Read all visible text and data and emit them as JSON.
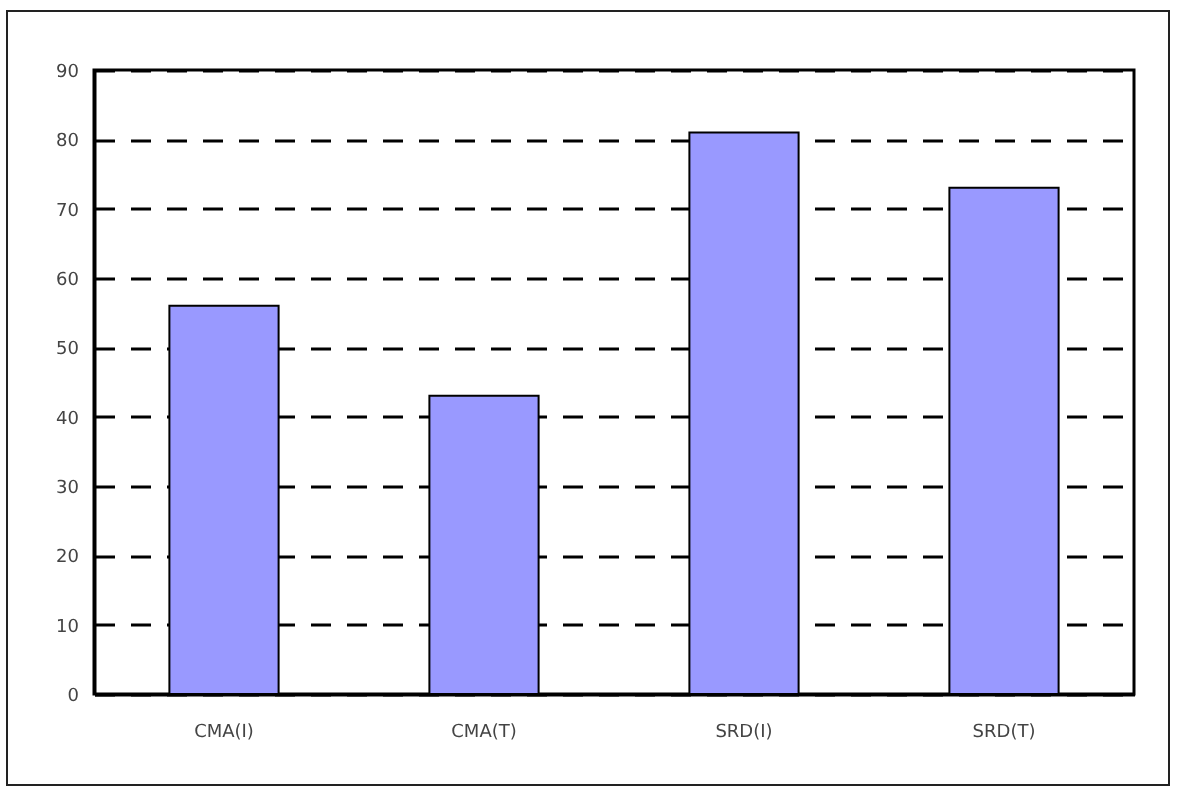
{
  "chart_data": {
    "type": "bar",
    "categories": [
      "CMA(I)",
      "CMA(T)",
      "SRD(I)",
      "SRD(T)"
    ],
    "values": [
      56,
      43,
      81,
      73
    ],
    "color": "#9999ff",
    "ylim": [
      0,
      90
    ],
    "yticks": [
      0,
      10,
      20,
      30,
      40,
      50,
      60,
      70,
      80,
      90
    ],
    "grid": "y"
  }
}
